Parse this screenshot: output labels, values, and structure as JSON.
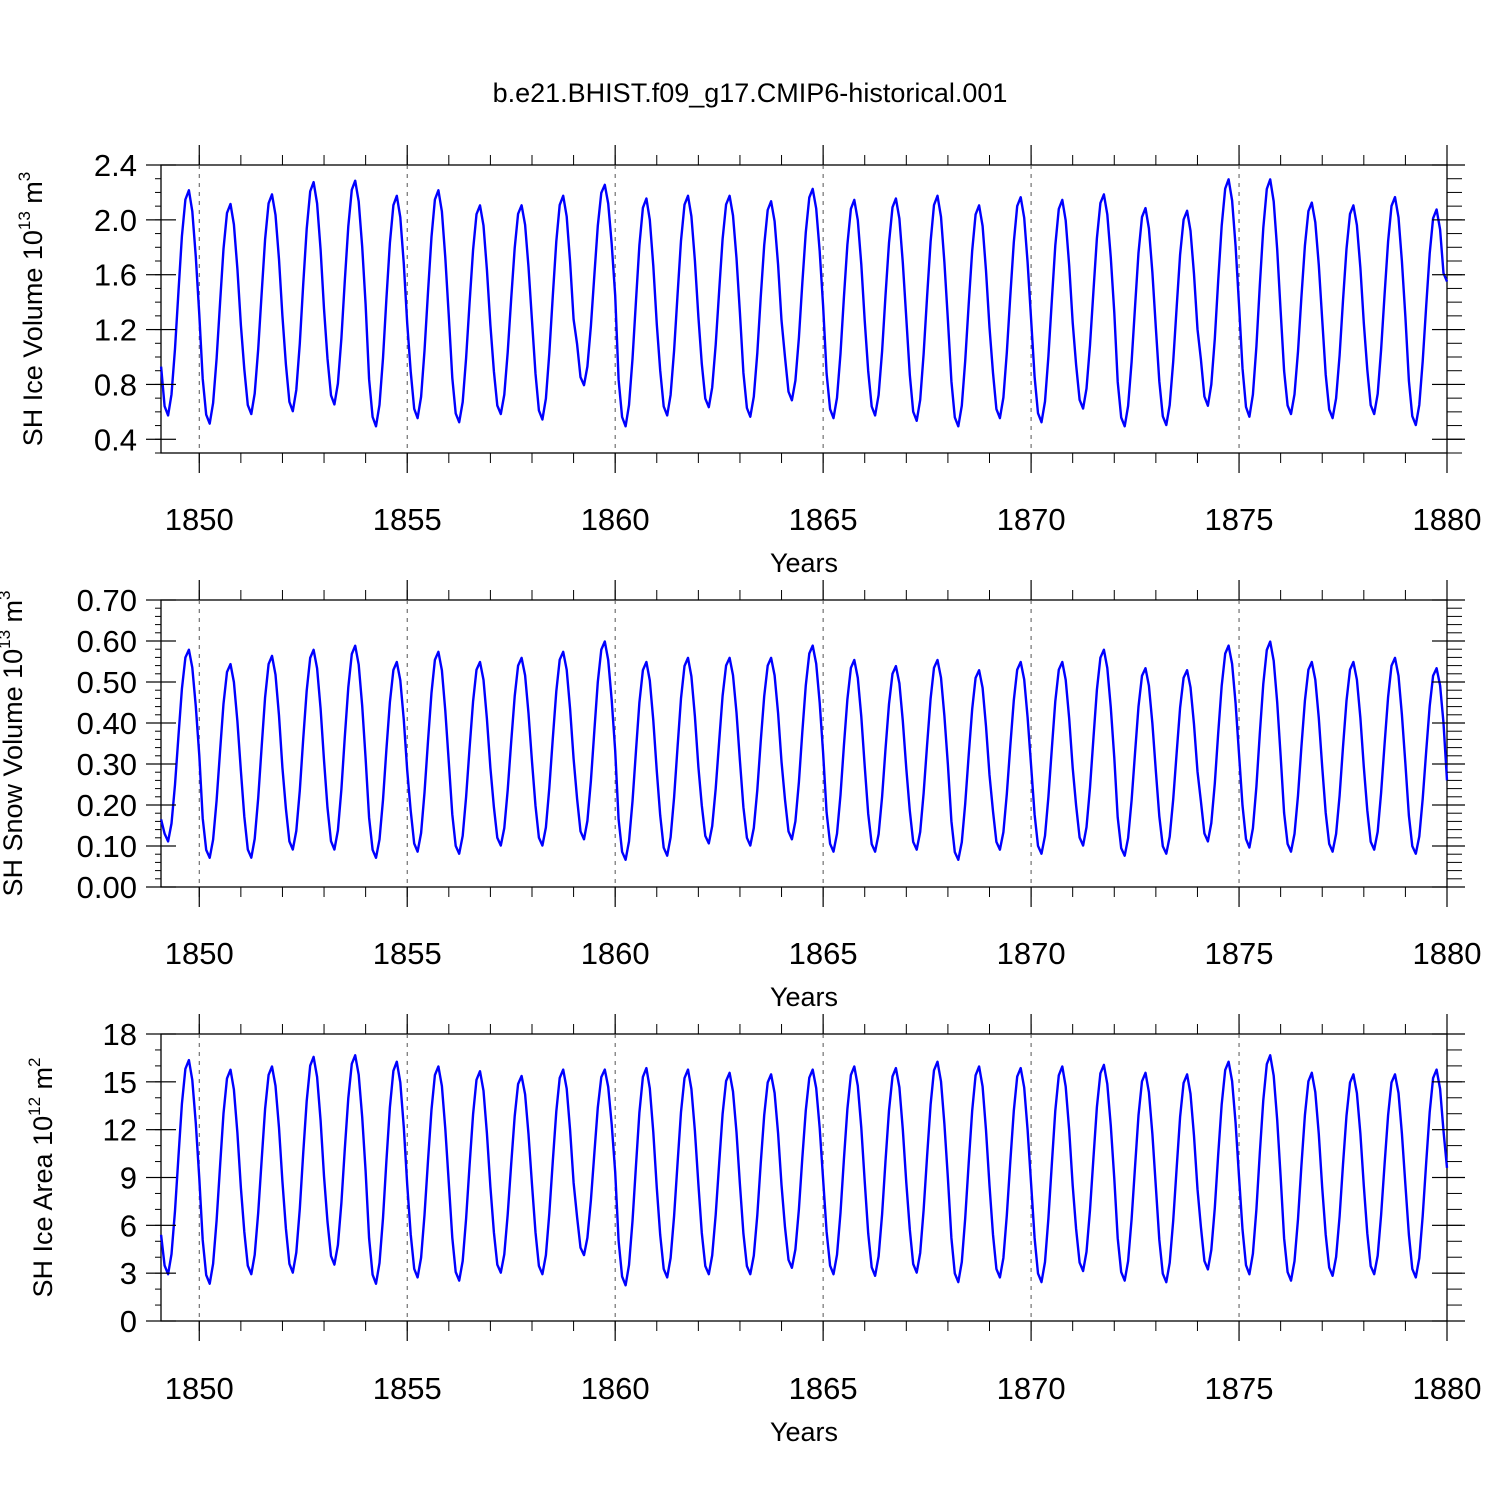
{
  "title": "b.e21.BHIST.f09_g17.CMIP6-historical.001",
  "line_color": "#0000ff",
  "grid_color": "#555555",
  "chart_data": [
    {
      "type": "line",
      "ylabel_prefix": "SH Ice Volume 10",
      "ylabel_exp": "13",
      "ylabel_unit": " m",
      "ylabel_unit_exp": "3",
      "xlabel": "Years",
      "xlim": [
        1849.08,
        1880.0
      ],
      "ylim": [
        0.3,
        2.4
      ],
      "yticks": [
        0.4,
        0.8,
        1.2,
        1.6,
        2.0,
        2.4
      ],
      "ytick_labels": [
        "0.4",
        "0.8",
        "1.2",
        "1.6",
        "2.0",
        "2.4"
      ],
      "yminor_step": 0.1,
      "xticks": [
        1850,
        1855,
        1860,
        1865,
        1870,
        1875,
        1880
      ],
      "xtick_labels": [
        "1850",
        "1855",
        "1860",
        "1865",
        "1870",
        "1875",
        "1880"
      ],
      "vgrid": [
        1850,
        1855,
        1860,
        1865,
        1870,
        1875
      ],
      "start_year": 1849,
      "annual_max": [
        2.22,
        2.12,
        2.19,
        2.28,
        2.29,
        2.18,
        2.22,
        2.11,
        2.11,
        2.18,
        2.26,
        2.16,
        2.18,
        2.18,
        2.14,
        2.23,
        2.15,
        2.16,
        2.18,
        2.11,
        2.17,
        2.15,
        2.19,
        2.09,
        2.07,
        2.3,
        2.3,
        2.13,
        2.11,
        2.17,
        2.08
      ],
      "annual_min": [
        0.57,
        0.51,
        0.58,
        0.6,
        0.65,
        0.49,
        0.55,
        0.52,
        0.58,
        0.54,
        0.79,
        0.49,
        0.57,
        0.63,
        0.56,
        0.68,
        0.55,
        0.57,
        0.53,
        0.49,
        0.55,
        0.52,
        0.62,
        0.49,
        0.5,
        0.64,
        0.56,
        0.58,
        0.55,
        0.58,
        0.5
      ],
      "first_value": 0.93,
      "last_value": 1.55
    },
    {
      "type": "line",
      "ylabel_prefix": "SH Snow Volume 10",
      "ylabel_exp": "13",
      "ylabel_unit": " m",
      "ylabel_unit_exp": "3",
      "xlabel": "Years",
      "xlim": [
        1849.08,
        1880.0
      ],
      "ylim": [
        0.0,
        0.7
      ],
      "yticks": [
        0.0,
        0.1,
        0.2,
        0.3,
        0.4,
        0.5,
        0.6,
        0.7
      ],
      "ytick_labels": [
        "0.00",
        "0.10",
        "0.20",
        "0.30",
        "0.40",
        "0.50",
        "0.60",
        "0.70"
      ],
      "yminor_step": 0.02,
      "xticks": [
        1850,
        1855,
        1860,
        1865,
        1870,
        1875,
        1880
      ],
      "xtick_labels": [
        "1850",
        "1855",
        "1860",
        "1865",
        "1870",
        "1875",
        "1880"
      ],
      "vgrid": [
        1850,
        1855,
        1860,
        1865,
        1870,
        1875
      ],
      "start_year": 1849,
      "annual_max": [
        0.58,
        0.545,
        0.565,
        0.58,
        0.59,
        0.55,
        0.575,
        0.55,
        0.56,
        0.575,
        0.6,
        0.55,
        0.56,
        0.56,
        0.56,
        0.59,
        0.555,
        0.54,
        0.555,
        0.53,
        0.55,
        0.55,
        0.58,
        0.535,
        0.53,
        0.59,
        0.6,
        0.55,
        0.55,
        0.56,
        0.535
      ],
      "annual_min": [
        0.11,
        0.07,
        0.07,
        0.09,
        0.09,
        0.07,
        0.085,
        0.08,
        0.1,
        0.1,
        0.115,
        0.065,
        0.075,
        0.105,
        0.1,
        0.115,
        0.085,
        0.085,
        0.09,
        0.065,
        0.09,
        0.08,
        0.1,
        0.075,
        0.08,
        0.11,
        0.095,
        0.085,
        0.085,
        0.09,
        0.08
      ],
      "first_value": 0.165,
      "last_value": 0.26
    },
    {
      "type": "line",
      "ylabel_prefix": "SH Ice Area 10",
      "ylabel_exp": "12",
      "ylabel_unit": " m",
      "ylabel_unit_exp": "2",
      "xlabel": "Years",
      "xlim": [
        1849.08,
        1880.0
      ],
      "ylim": [
        0,
        18
      ],
      "yticks": [
        0,
        3,
        6,
        9,
        12,
        15,
        18
      ],
      "ytick_labels": [
        "0",
        "3",
        "6",
        "9",
        "12",
        "15",
        "18"
      ],
      "yminor_step": 1,
      "xticks": [
        1850,
        1855,
        1860,
        1865,
        1870,
        1875,
        1880
      ],
      "xtick_labels": [
        "1850",
        "1855",
        "1860",
        "1865",
        "1870",
        "1875",
        "1880"
      ],
      "vgrid": [
        1850,
        1855,
        1860,
        1865,
        1870,
        1875
      ],
      "start_year": 1849,
      "annual_max": [
        16.4,
        15.8,
        16.0,
        16.6,
        16.7,
        16.3,
        16.0,
        15.7,
        15.4,
        15.8,
        15.8,
        15.9,
        15.8,
        15.6,
        15.5,
        15.8,
        16.0,
        15.9,
        16.3,
        16.0,
        15.9,
        16.0,
        16.1,
        15.6,
        15.5,
        16.3,
        16.7,
        15.6,
        15.5,
        15.5,
        15.8
      ],
      "annual_min": [
        2.9,
        2.3,
        2.9,
        3.0,
        3.5,
        2.3,
        2.7,
        2.5,
        3.0,
        2.9,
        4.1,
        2.2,
        2.7,
        2.9,
        2.9,
        3.3,
        2.9,
        2.8,
        3.0,
        2.4,
        2.7,
        2.4,
        3.1,
        2.5,
        2.4,
        3.2,
        2.9,
        2.5,
        2.8,
        2.9,
        2.7
      ],
      "first_value": 5.4,
      "last_value": 9.6
    }
  ]
}
